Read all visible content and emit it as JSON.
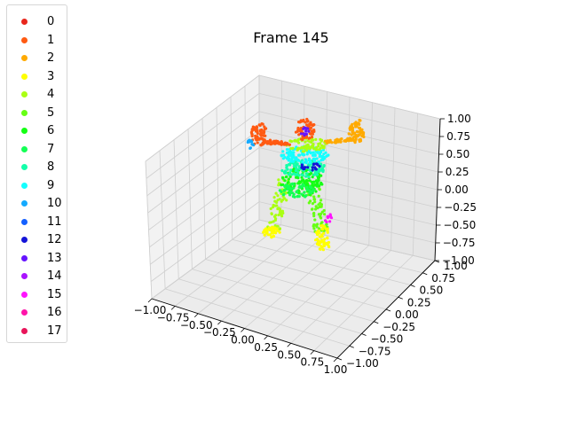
{
  "chart_data": {
    "type": "scatter",
    "projection": "3d",
    "title": "Frame 145",
    "xlim": [
      -1.0,
      1.0
    ],
    "ylim": [
      -1.0,
      1.0
    ],
    "zlim": [
      -1.0,
      1.0
    ],
    "x_ticks": [
      "−1.00",
      "−0.75",
      "−0.50",
      "−0.25",
      "0.00",
      "0.25",
      "0.50",
      "0.75",
      "1.00"
    ],
    "y_ticks": [
      "−1.00",
      "−0.75",
      "−0.50",
      "−0.25",
      "0.00",
      "0.25",
      "0.50",
      "0.75",
      "1.00"
    ],
    "z_ticks": [
      "−1.00",
      "−0.75",
      "−0.50",
      "−0.25",
      "0.00",
      "0.25",
      "0.50",
      "0.75",
      "1.00"
    ],
    "grid": true,
    "legend_position": "upper-left",
    "legend": [
      {
        "label": "0",
        "color": "#e8261c"
      },
      {
        "label": "1",
        "color": "#ff5a12"
      },
      {
        "label": "2",
        "color": "#ffaa00"
      },
      {
        "label": "3",
        "color": "#ffff00"
      },
      {
        "label": "4",
        "color": "#aaff14"
      },
      {
        "label": "5",
        "color": "#66ff14"
      },
      {
        "label": "6",
        "color": "#14ff14"
      },
      {
        "label": "7",
        "color": "#14ff55"
      },
      {
        "label": "8",
        "color": "#14ffaa"
      },
      {
        "label": "9",
        "color": "#14ffff"
      },
      {
        "label": "10",
        "color": "#14aaff"
      },
      {
        "label": "11",
        "color": "#1460ff"
      },
      {
        "label": "12",
        "color": "#1414d8"
      },
      {
        "label": "13",
        "color": "#6614ff"
      },
      {
        "label": "14",
        "color": "#aa14ff"
      },
      {
        "label": "15",
        "color": "#ff14ff"
      },
      {
        "label": "16",
        "color": "#ff14aa"
      },
      {
        "label": "17",
        "color": "#e8145a"
      }
    ]
  }
}
